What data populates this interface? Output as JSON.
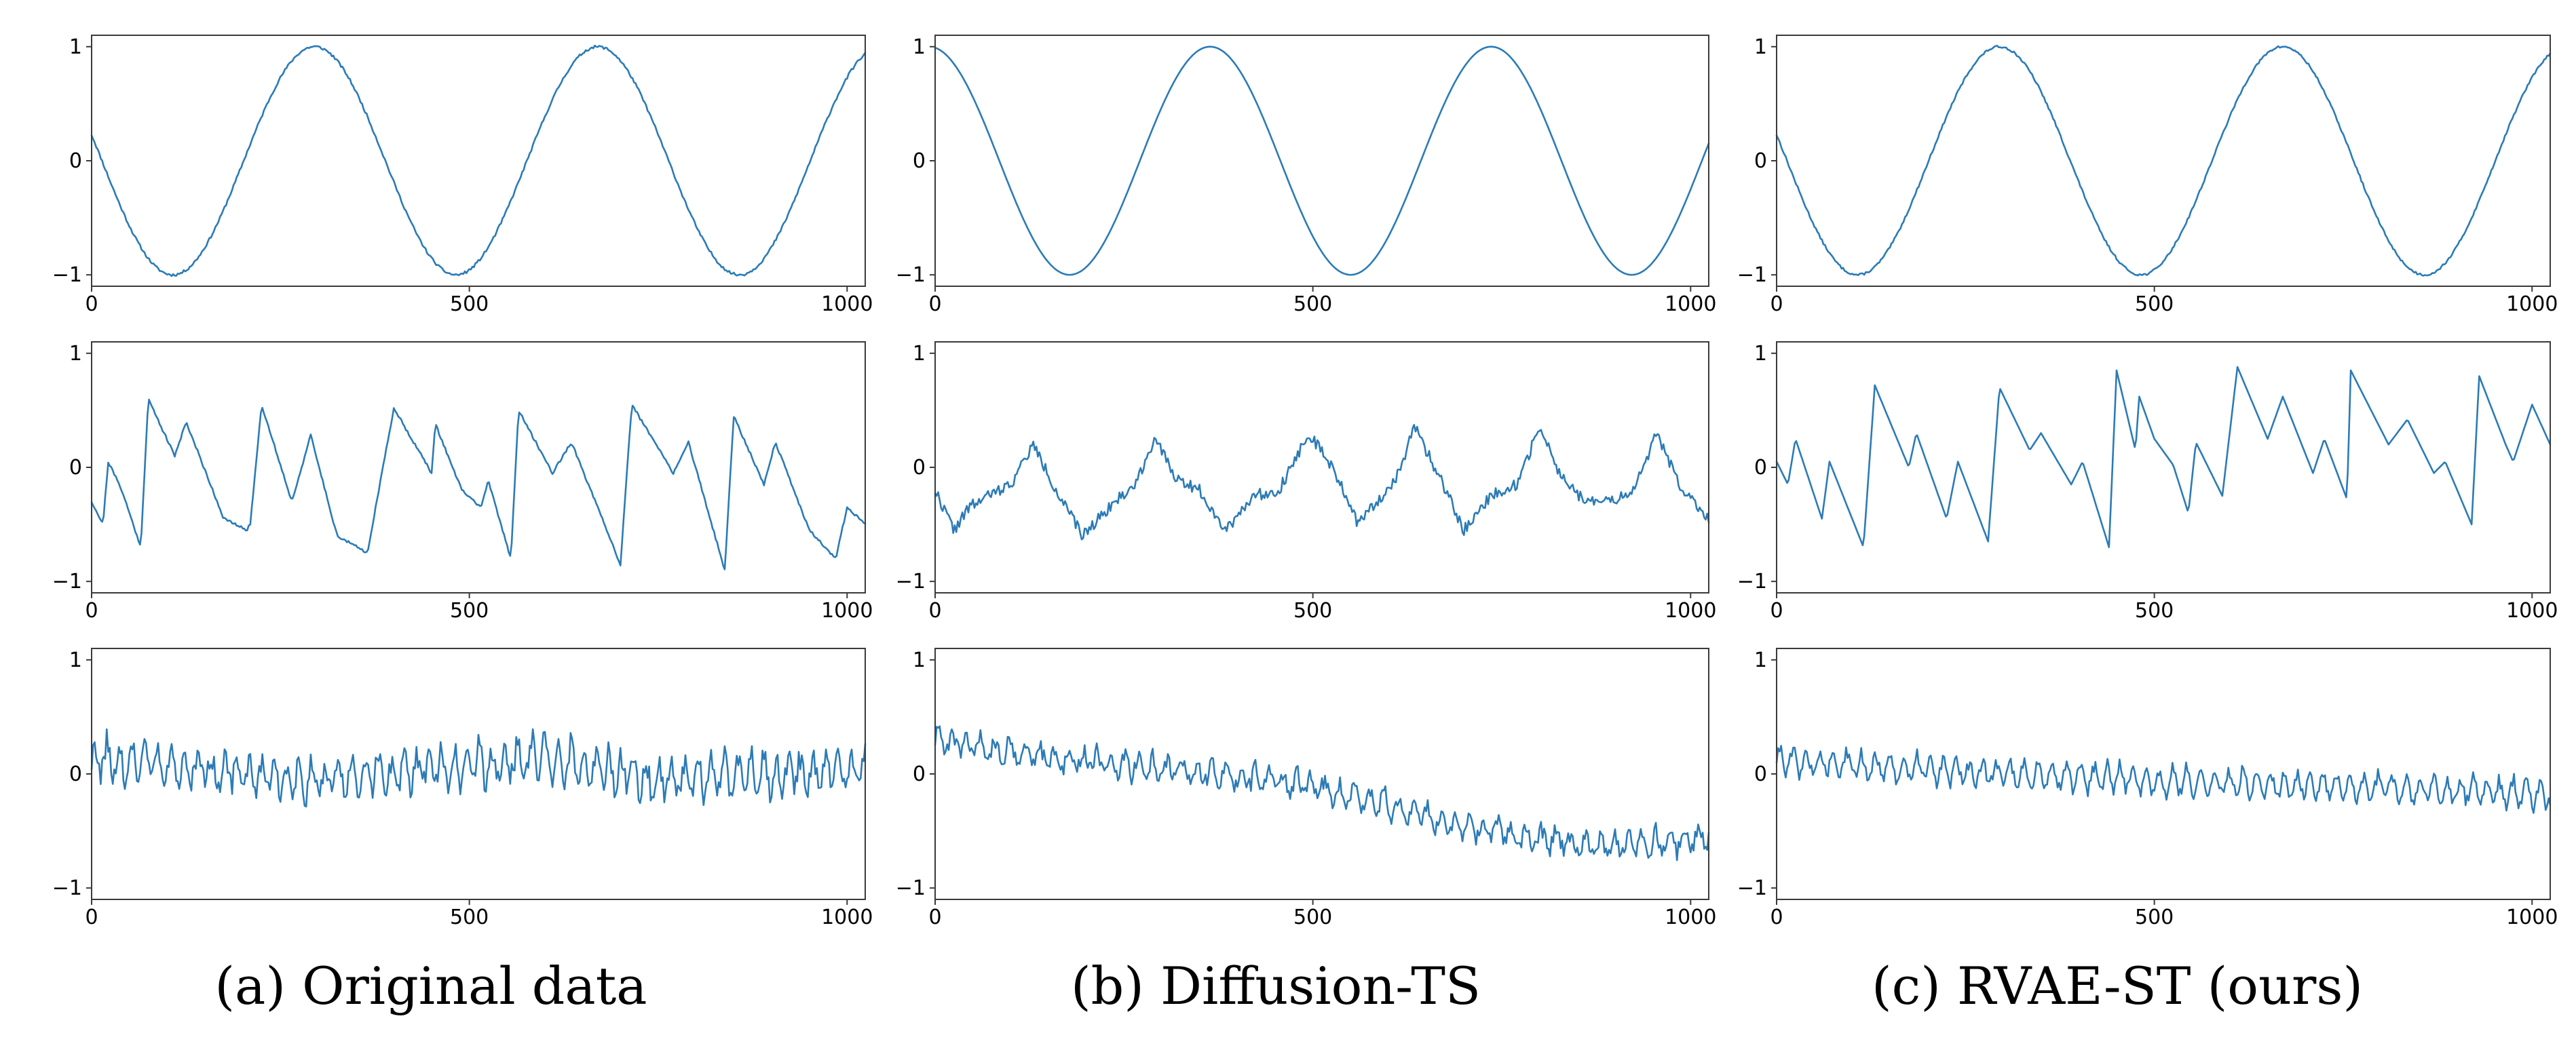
{
  "colors": {
    "line": "#2c7bb6",
    "frame": "#3a3a3a"
  },
  "captions": [
    "(a) Original data",
    "(b) Diffusion-TS",
    "(c) RVAE-ST (ours)"
  ],
  "chart_data": [
    {
      "type": "line",
      "column": 0,
      "row": 0,
      "xlim": [
        0,
        1024
      ],
      "ylim": [
        -1.1,
        1.1
      ],
      "xticks": [
        0,
        500,
        1000
      ],
      "yticks": [
        -1,
        0,
        1
      ],
      "xtick_labels": [
        "0",
        "500",
        "1000"
      ],
      "ytick_labels": [
        "−1",
        "0",
        "1"
      ],
      "grid": false,
      "series": [
        {
          "gen": "sine",
          "amp": 1.0,
          "period": 375,
          "phase_x": 295,
          "noise": 0.012,
          "seed": 11
        }
      ]
    },
    {
      "type": "line",
      "column": 1,
      "row": 0,
      "xlim": [
        0,
        1024
      ],
      "ylim": [
        -1.1,
        1.1
      ],
      "xticks": [
        0,
        500,
        1000
      ],
      "yticks": [
        -1,
        0,
        1
      ],
      "xtick_labels": [
        "0",
        "500",
        "1000"
      ],
      "ytick_labels": [
        "−1",
        "0",
        "1"
      ],
      "grid": false,
      "series": [
        {
          "gen": "sine",
          "amp": 1.0,
          "period": 372,
          "phase_x": 364,
          "noise": 0.0,
          "seed": 12
        }
      ]
    },
    {
      "type": "line",
      "column": 2,
      "row": 0,
      "xlim": [
        0,
        1024
      ],
      "ylim": [
        -1.1,
        1.1
      ],
      "xticks": [
        0,
        500,
        1000
      ],
      "yticks": [
        -1,
        0,
        1
      ],
      "xtick_labels": [
        "0",
        "500",
        "1000"
      ],
      "ytick_labels": [
        "−1",
        "0",
        "1"
      ],
      "grid": false,
      "series": [
        {
          "gen": "sine",
          "amp": 1.0,
          "period": 375,
          "phase_x": 295,
          "noise": 0.01,
          "seed": 13
        }
      ]
    },
    {
      "type": "line",
      "column": 0,
      "row": 1,
      "xlim": [
        0,
        1024
      ],
      "ylim": [
        -1.1,
        1.1
      ],
      "xticks": [
        0,
        500,
        1000
      ],
      "yticks": [
        -1,
        0,
        1
      ],
      "xtick_labels": [
        "0",
        "500",
        "1000"
      ],
      "ytick_labels": [
        "−1",
        "0",
        "1"
      ],
      "grid": false,
      "series": [
        {
          "gen": "points",
          "noise": 0.012,
          "seed": 21,
          "pts": [
            [
              0,
              -0.3
            ],
            [
              15,
              -0.5
            ],
            [
              22,
              0.05
            ],
            [
              40,
              -0.2
            ],
            [
              55,
              -0.5
            ],
            [
              65,
              -0.7
            ],
            [
              75,
              0.6
            ],
            [
              110,
              0.1
            ],
            [
              125,
              0.4
            ],
            [
              175,
              -0.45
            ],
            [
              205,
              -0.55
            ],
            [
              210,
              -0.5
            ],
            [
              225,
              0.55
            ],
            [
              265,
              -0.3
            ],
            [
              290,
              0.28
            ],
            [
              325,
              -0.6
            ],
            [
              365,
              -0.75
            ],
            [
              400,
              0.52
            ],
            [
              450,
              -0.05
            ],
            [
              455,
              0.38
            ],
            [
              490,
              -0.2
            ],
            [
              515,
              -0.35
            ],
            [
              525,
              -0.12
            ],
            [
              555,
              -0.8
            ],
            [
              565,
              0.5
            ],
            [
              610,
              -0.05
            ],
            [
              635,
              0.22
            ],
            [
              700,
              -0.85
            ],
            [
              715,
              0.55
            ],
            [
              770,
              -0.05
            ],
            [
              790,
              0.22
            ],
            [
              838,
              -0.9
            ],
            [
              850,
              0.45
            ],
            [
              890,
              -0.15
            ],
            [
              905,
              0.22
            ],
            [
              950,
              -0.55
            ],
            [
              985,
              -0.8
            ],
            [
              1000,
              -0.35
            ],
            [
              1024,
              -0.5
            ]
          ]
        }
      ]
    },
    {
      "type": "line",
      "column": 1,
      "row": 1,
      "xlim": [
        0,
        1024
      ],
      "ylim": [
        -1.1,
        1.1
      ],
      "xticks": [
        0,
        500,
        1000
      ],
      "yticks": [
        -1,
        0,
        1
      ],
      "xtick_labels": [
        "0",
        "500",
        "1000"
      ],
      "ytick_labels": [
        "−1",
        "0",
        "1"
      ],
      "grid": false,
      "series": [
        {
          "gen": "points",
          "noise": 0.05,
          "seed": 22,
          "pts": [
            [
              0,
              -0.2
            ],
            [
              25,
              -0.55
            ],
            [
              45,
              -0.35
            ],
            [
              70,
              -0.25
            ],
            [
              100,
              -0.15
            ],
            [
              130,
              0.2
            ],
            [
              160,
              -0.2
            ],
            [
              195,
              -0.6
            ],
            [
              230,
              -0.35
            ],
            [
              265,
              -0.15
            ],
            [
              290,
              0.25
            ],
            [
              320,
              -0.1
            ],
            [
              350,
              -0.2
            ],
            [
              385,
              -0.55
            ],
            [
              420,
              -0.25
            ],
            [
              455,
              -0.2
            ],
            [
              495,
              0.3
            ],
            [
              530,
              -0.05
            ],
            [
              560,
              -0.5
            ],
            [
              585,
              -0.3
            ],
            [
              610,
              -0.1
            ],
            [
              635,
              0.35
            ],
            [
              665,
              -0.05
            ],
            [
              700,
              -0.55
            ],
            [
              735,
              -0.25
            ],
            [
              770,
              -0.15
            ],
            [
              800,
              0.35
            ],
            [
              830,
              -0.1
            ],
            [
              860,
              -0.3
            ],
            [
              895,
              -0.3
            ],
            [
              925,
              -0.2
            ],
            [
              955,
              0.3
            ],
            [
              985,
              -0.15
            ],
            [
              1024,
              -0.45
            ]
          ]
        }
      ]
    },
    {
      "type": "line",
      "column": 2,
      "row": 1,
      "xlim": [
        0,
        1024
      ],
      "ylim": [
        -1.1,
        1.1
      ],
      "xticks": [
        0,
        500,
        1000
      ],
      "yticks": [
        -1,
        0,
        1
      ],
      "xtick_labels": [
        "0",
        "500",
        "1000"
      ],
      "ytick_labels": [
        "−1",
        "0",
        "1"
      ],
      "grid": false,
      "series": [
        {
          "gen": "points",
          "noise": 0.0,
          "seed": 23,
          "pts": [
            [
              0,
              0.05
            ],
            [
              15,
              -0.15
            ],
            [
              25,
              0.25
            ],
            [
              60,
              -0.45
            ],
            [
              70,
              0.05
            ],
            [
              115,
              -0.7
            ],
            [
              130,
              0.72
            ],
            [
              175,
              0.0
            ],
            [
              185,
              0.3
            ],
            [
              225,
              -0.45
            ],
            [
              240,
              0.05
            ],
            [
              280,
              -0.65
            ],
            [
              295,
              0.7
            ],
            [
              335,
              0.15
            ],
            [
              350,
              0.3
            ],
            [
              390,
              -0.15
            ],
            [
              405,
              0.05
            ],
            [
              440,
              -0.7
            ],
            [
              450,
              0.85
            ],
            [
              475,
              0.15
            ],
            [
              480,
              0.62
            ],
            [
              500,
              0.25
            ],
            [
              525,
              0.02
            ],
            [
              545,
              -0.4
            ],
            [
              555,
              0.22
            ],
            [
              590,
              -0.25
            ],
            [
              610,
              0.88
            ],
            [
              650,
              0.25
            ],
            [
              670,
              0.62
            ],
            [
              710,
              -0.05
            ],
            [
              725,
              0.25
            ],
            [
              755,
              -0.28
            ],
            [
              760,
              0.85
            ],
            [
              810,
              0.2
            ],
            [
              835,
              0.42
            ],
            [
              870,
              -0.05
            ],
            [
              885,
              0.05
            ],
            [
              920,
              -0.5
            ],
            [
              930,
              0.8
            ],
            [
              965,
              0.2
            ],
            [
              975,
              0.05
            ],
            [
              1000,
              0.55
            ],
            [
              1024,
              0.2
            ]
          ]
        }
      ]
    },
    {
      "type": "line",
      "column": 0,
      "row": 2,
      "xlim": [
        0,
        1024
      ],
      "ylim": [
        -1.1,
        1.1
      ],
      "xticks": [
        0,
        500,
        1000
      ],
      "yticks": [
        -1,
        0,
        1
      ],
      "xtick_labels": [
        "0",
        "500",
        "1000"
      ],
      "ytick_labels": [
        "−1",
        "0",
        "1"
      ],
      "grid": false,
      "series": [
        {
          "gen": "osc",
          "base": [
            [
              0,
              0.12
            ],
            [
              300,
              -0.05
            ],
            [
              600,
              0.15
            ],
            [
              750,
              -0.05
            ],
            [
              1024,
              0.05
            ]
          ],
          "amp": 0.16,
          "period": 17,
          "noise": 0.1,
          "seed": 31
        }
      ]
    },
    {
      "type": "line",
      "column": 1,
      "row": 2,
      "xlim": [
        0,
        1024
      ],
      "ylim": [
        -1.1,
        1.1
      ],
      "xticks": [
        0,
        500,
        1000
      ],
      "yticks": [
        -1,
        0,
        1
      ],
      "xtick_labels": [
        "0",
        "500",
        "1000"
      ],
      "ytick_labels": [
        "−1",
        "0",
        "1"
      ],
      "grid": false,
      "series": [
        {
          "gen": "osc",
          "base": [
            [
              0,
              0.3
            ],
            [
              150,
              0.15
            ],
            [
              300,
              0.05
            ],
            [
              500,
              -0.1
            ],
            [
              700,
              -0.45
            ],
            [
              880,
              -0.65
            ],
            [
              1024,
              -0.55
            ]
          ],
          "amp": 0.1,
          "period": 19,
          "noise": 0.07,
          "seed": 32
        }
      ]
    },
    {
      "type": "line",
      "column": 2,
      "row": 2,
      "xlim": [
        0,
        1024
      ],
      "ylim": [
        -1.1,
        1.1
      ],
      "xticks": [
        0,
        500,
        1000
      ],
      "yticks": [
        -1,
        0,
        1
      ],
      "xtick_labels": [
        "0",
        "500",
        "1000"
      ],
      "ytick_labels": [
        "−1",
        "0",
        "1"
      ],
      "grid": false,
      "series": [
        {
          "gen": "osc",
          "base": [
            [
              0,
              0.12
            ],
            [
              300,
              0.0
            ],
            [
              600,
              -0.08
            ],
            [
              1024,
              -0.18
            ]
          ],
          "amp": 0.12,
          "period": 18,
          "noise": 0.05,
          "seed": 33
        }
      ]
    }
  ]
}
